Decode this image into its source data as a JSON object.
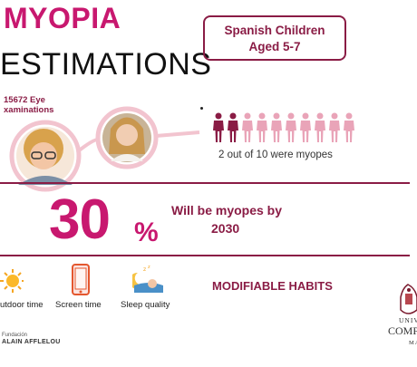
{
  "title": {
    "line1": "MYOPIA",
    "line2": "ESTIMATIONS"
  },
  "badge": {
    "line1": "Spanish Children",
    "line2": "Aged 5-7"
  },
  "exams": {
    "line1": "15672 Eye",
    "line2": "xaminations"
  },
  "population": {
    "total": 10,
    "myopes": 2,
    "caption": "2 out of 10 were myopes"
  },
  "projection": {
    "value": "30",
    "unit": "%",
    "text": "Will be myopes by",
    "year": "2030"
  },
  "habits": {
    "heading": "MODIFIABLE HABITS",
    "items": [
      {
        "label": "utdoor time",
        "icon": "sun-icon"
      },
      {
        "label": "Screen time",
        "icon": "smartphone-icon"
      },
      {
        "label": "Sleep quality",
        "icon": "sleep-icon"
      }
    ]
  },
  "footer": {
    "fundacion": "Fundación",
    "fundacion_name": "ALAIN AFFLELOU",
    "univ_line1": "UNIV",
    "univ_line2": "COMPL",
    "univ_line3": "MA"
  },
  "colors": {
    "magenta": "#c8186f",
    "maroon": "#8a1c45",
    "pink_light": "#e9a4b8"
  }
}
